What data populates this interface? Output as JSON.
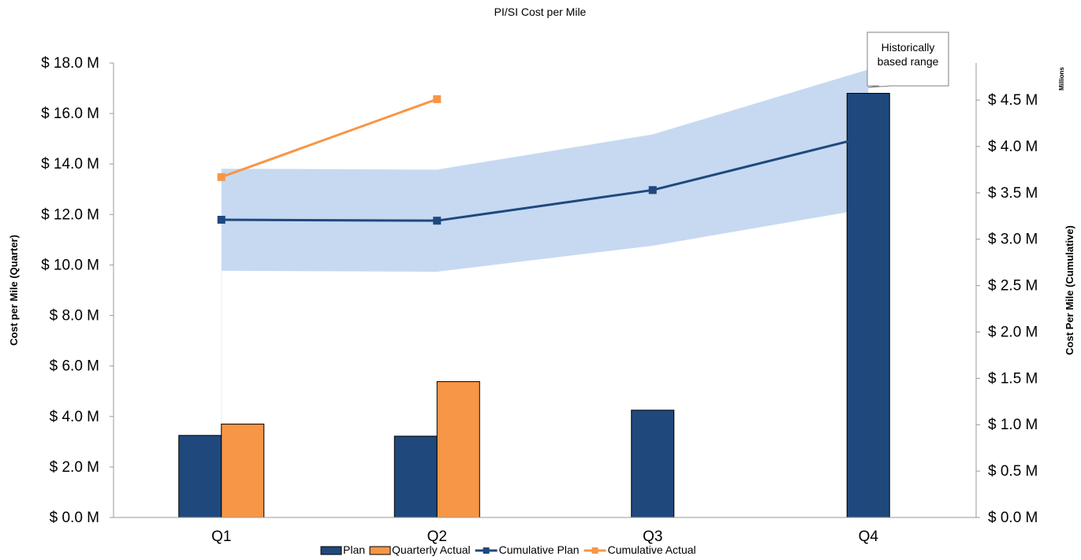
{
  "chart_data": {
    "type": "bar",
    "title": "PI/SI Cost per Mile",
    "categories": [
      "Q1",
      "Q2",
      "Q3",
      "Q4"
    ],
    "ylabel": "Cost per Mile (Quarter)",
    "y2label": "Cost Per Mile (Cumulative)",
    "y2_units_label": "Millions",
    "ylim": [
      0,
      18
    ],
    "y2lim": [
      0,
      4.9
    ],
    "y_ticks": [
      "$ 0.0 M",
      "$ 2.0 M",
      "$ 4.0 M",
      "$ 6.0 M",
      "$ 8.0 M",
      "$ 10.0 M",
      "$ 12.0 M",
      "$ 14.0 M",
      "$ 16.0 M",
      "$ 18.0 M"
    ],
    "y2_ticks": [
      "$ 0.0 M",
      "$ 0.5 M",
      "$ 1.0 M",
      "$ 1.5 M",
      "$ 2.0 M",
      "$ 2.5 M",
      "$ 3.0 M",
      "$ 3.5 M",
      "$ 4.0 M",
      "$ 4.5 M"
    ],
    "series": [
      {
        "name": "Plan",
        "kind": "bar",
        "axis": "left",
        "color": "#1f497d",
        "values": [
          3.25,
          3.22,
          4.25,
          16.8
        ]
      },
      {
        "name": "Quarterly Actual",
        "kind": "bar",
        "axis": "left",
        "color": "#f79646",
        "values": [
          3.7,
          5.38,
          null,
          null
        ]
      },
      {
        "name": "Cumulative Plan",
        "kind": "line",
        "axis": "right",
        "color": "#1f497d",
        "values": [
          3.21,
          3.2,
          3.53,
          4.11
        ]
      },
      {
        "name": "Cumulative Actual",
        "kind": "line",
        "axis": "right",
        "color": "#f79646",
        "values": [
          3.67,
          4.51,
          null,
          null
        ]
      }
    ],
    "range_band": {
      "label": "Historically based range",
      "axis": "right",
      "color": "#c6d9f1",
      "low": [
        2.66,
        2.65,
        2.93,
        3.33
      ],
      "high": [
        3.76,
        3.75,
        4.13,
        4.83
      ]
    },
    "grid": false,
    "legend_position": "bottom"
  }
}
